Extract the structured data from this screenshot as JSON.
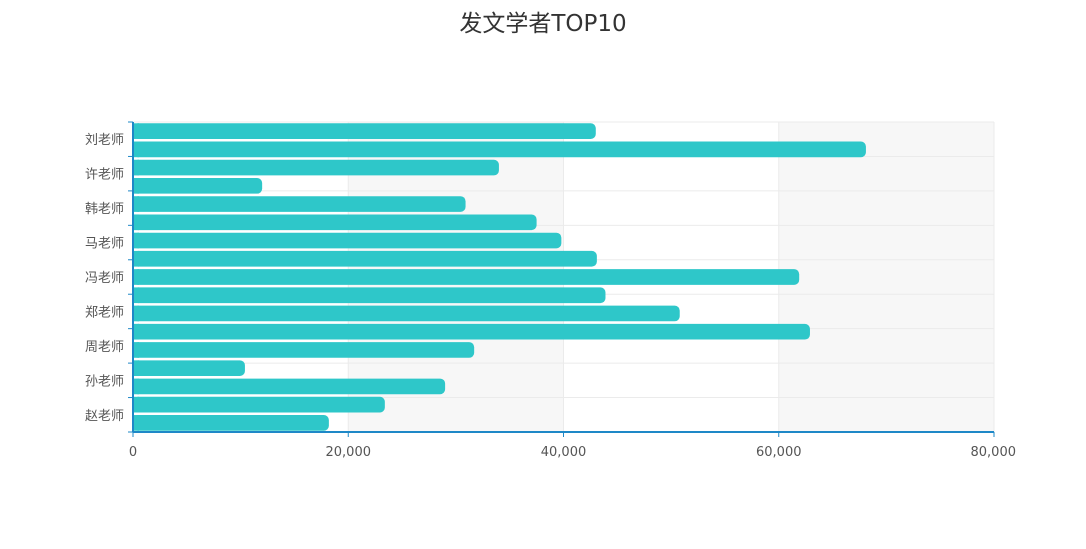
{
  "chart_data": {
    "type": "bar",
    "orientation": "horizontal",
    "title": "发文学者TOP10",
    "xlabel": "",
    "ylabel": "",
    "xlim": [
      0,
      80000
    ],
    "x_ticks": [
      "0",
      "20,000",
      "40,000",
      "60,000",
      "80,000"
    ],
    "y_tick_labels": [
      "刘老师",
      "许老师",
      "韩老师",
      "马老师",
      "冯老师",
      "郑老师",
      "周老师",
      "孙老师",
      "赵老师"
    ],
    "bar_color": "#2ec7c9",
    "axis_color": "#1e88c7",
    "grid": true,
    "series": [
      {
        "values": [
          43000,
          68100,
          34000,
          12000,
          30900,
          37500,
          39800,
          43100,
          61900,
          43900,
          50800,
          62900,
          31700,
          10400,
          29000,
          23400,
          18200
        ]
      }
    ]
  }
}
